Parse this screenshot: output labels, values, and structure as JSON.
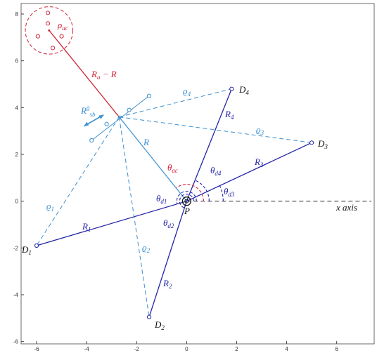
{
  "axes": {
    "xlim": [
      -6.62,
      7.5
    ],
    "ylim": [
      -6.1,
      8.45
    ],
    "xticks": [
      -6,
      -4,
      -2,
      0,
      2,
      4,
      6
    ],
    "yticks": [
      -6,
      -4,
      -2,
      0,
      2,
      4,
      6,
      8
    ]
  },
  "center": {
    "x": 0,
    "y": 0
  },
  "anchors": [
    {
      "x": -6,
      "y": -1.9
    },
    {
      "x": -1.5,
      "y": -4.95
    },
    {
      "x": 5,
      "y": 2.5
    },
    {
      "x": 1.8,
      "y": 4.8
    }
  ],
  "estimate": {
    "x": -2.7,
    "y": 3.6
  },
  "sensor_line": [
    {
      "x": -3.8,
      "y": 2.6
    },
    {
      "x": -3.2,
      "y": 3.3
    },
    {
      "x": -2.3,
      "y": 3.9
    },
    {
      "x": -1.5,
      "y": 4.5
    }
  ],
  "cluster": {
    "x": -5.5,
    "y": 7.3,
    "r": 0.95,
    "points": [
      {
        "x": -5.55,
        "y": 8.05
      },
      {
        "x": -5.95,
        "y": 7.05
      },
      {
        "x": -5,
        "y": 7.05
      },
      {
        "x": -5.35,
        "y": 6.55
      },
      {
        "x": -5.55,
        "y": 7.6
      }
    ]
  },
  "labels": [
    {
      "main": "ρ",
      "sub": "ac"
    },
    {
      "main": "R",
      "sub": "a",
      "rest": " − R"
    },
    {
      "main": "R",
      "sup": "g",
      "sub": "sb"
    },
    {
      "main": "R"
    },
    {
      "main": "ϱ",
      "sub": "4"
    },
    {
      "main": "ϱ",
      "sub": "3"
    },
    {
      "main": "ϱ",
      "sub": "1"
    },
    {
      "main": "ϱ",
      "sub": "2"
    },
    {
      "main": "R",
      "sub": "1"
    },
    {
      "main": "R",
      "sub": "2"
    },
    {
      "main": "R",
      "sub": "3"
    },
    {
      "main": "R",
      "sub": "4"
    },
    {
      "main": "D",
      "sub": "1"
    },
    {
      "main": "D",
      "sub": "2"
    },
    {
      "main": "D",
      "sub": "3"
    },
    {
      "main": "D",
      "sub": "4"
    },
    {
      "main": "θ",
      "sub": "ac"
    },
    {
      "main": "θ",
      "sub": "d4"
    },
    {
      "main": "θ",
      "sub": "d3"
    },
    {
      "main": "θ",
      "sub": "d1"
    },
    {
      "main": "θ",
      "sub": "d2"
    },
    {
      "main": "P"
    },
    {
      "main": "x axis"
    }
  ]
}
